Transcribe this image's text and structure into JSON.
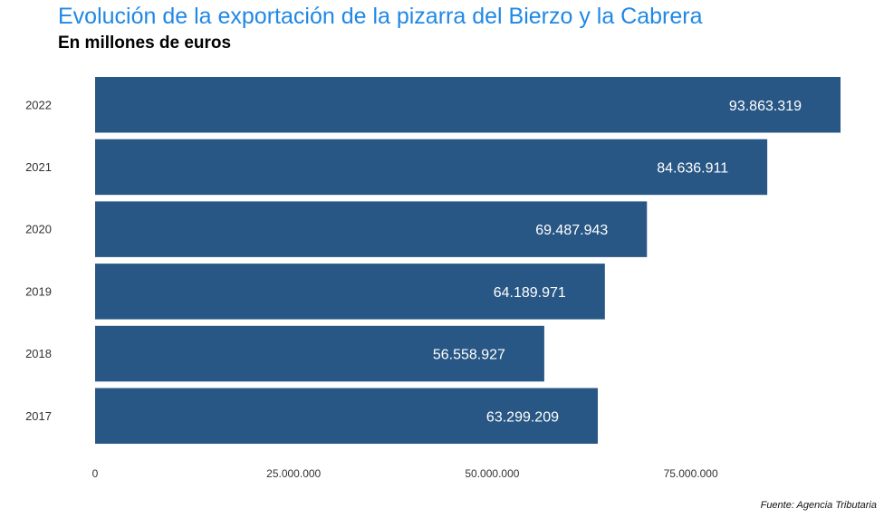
{
  "chart_data": {
    "type": "bar",
    "orientation": "horizontal",
    "title": "Evolución de la exportación de la pizarra del Bierzo y la Cabrera",
    "subtitle": "En millones de euros",
    "categories": [
      "2022",
      "2021",
      "2020",
      "2019",
      "2018",
      "2017"
    ],
    "values": [
      93863319,
      84636911,
      69487943,
      64189971,
      56558927,
      63299209
    ],
    "value_labels": [
      "93.863.319",
      "84.636.911",
      "69.487.943",
      "64.189.971",
      "56.558.927",
      "63.299.209"
    ],
    "x_ticks": [
      0,
      25000000,
      50000000,
      75000000
    ],
    "x_tick_labels": [
      "0",
      "25.000.000",
      "50.000.000",
      "75.000.000"
    ],
    "xlim": [
      0,
      93863319
    ],
    "grid": false,
    "bar_color": "#285785",
    "label_color": "#ffffff",
    "title_color": "#1f88e5"
  },
  "source": "Fuente: Agencia Tributaria"
}
